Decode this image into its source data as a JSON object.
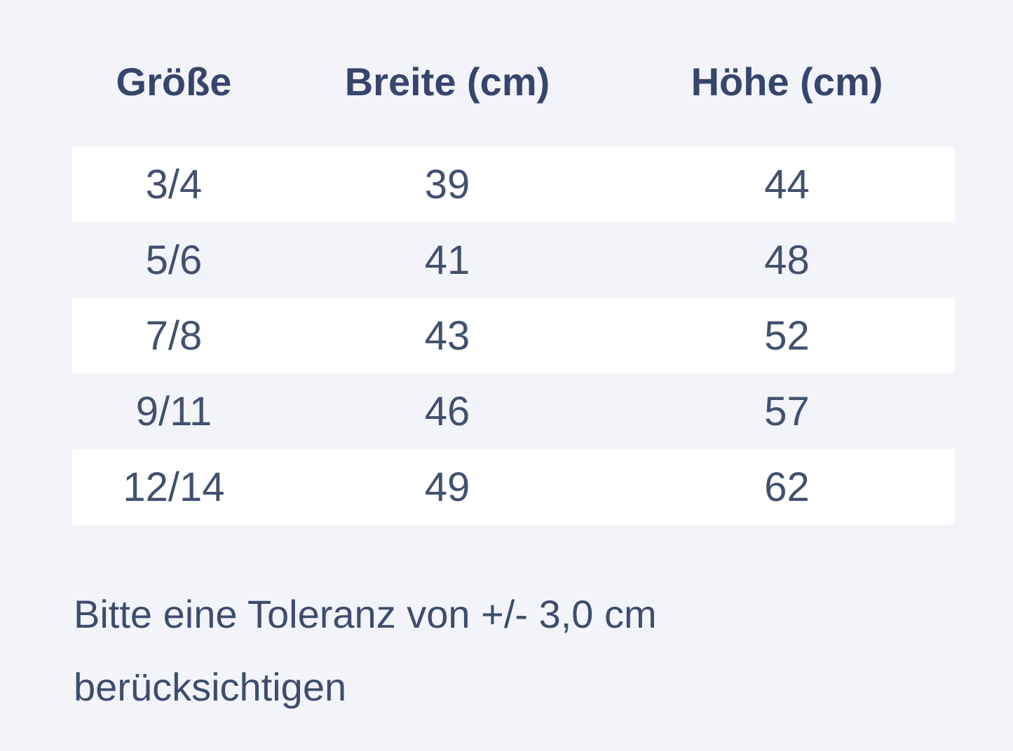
{
  "colors": {
    "background": "#f2f4f9",
    "row_stripe": "#ffffff",
    "header_text": "#36456b",
    "body_text": "#42516f",
    "note_text": "#3e4d6e"
  },
  "table": {
    "headers": {
      "size": "Größe",
      "width": "Breite (cm)",
      "height": "Höhe (cm)"
    },
    "rows": [
      {
        "size": "3/4",
        "width": "39",
        "height": "44"
      },
      {
        "size": "5/6",
        "width": "41",
        "height": "48"
      },
      {
        "size": "7/8",
        "width": "43",
        "height": "52"
      },
      {
        "size": "9/11",
        "width": "46",
        "height": "57"
      },
      {
        "size": "12/14",
        "width": "49",
        "height": "62"
      }
    ]
  },
  "note": {
    "line1": "Bitte eine Toleranz von +/- 3,0 cm",
    "line2": "berücksichtigen"
  }
}
